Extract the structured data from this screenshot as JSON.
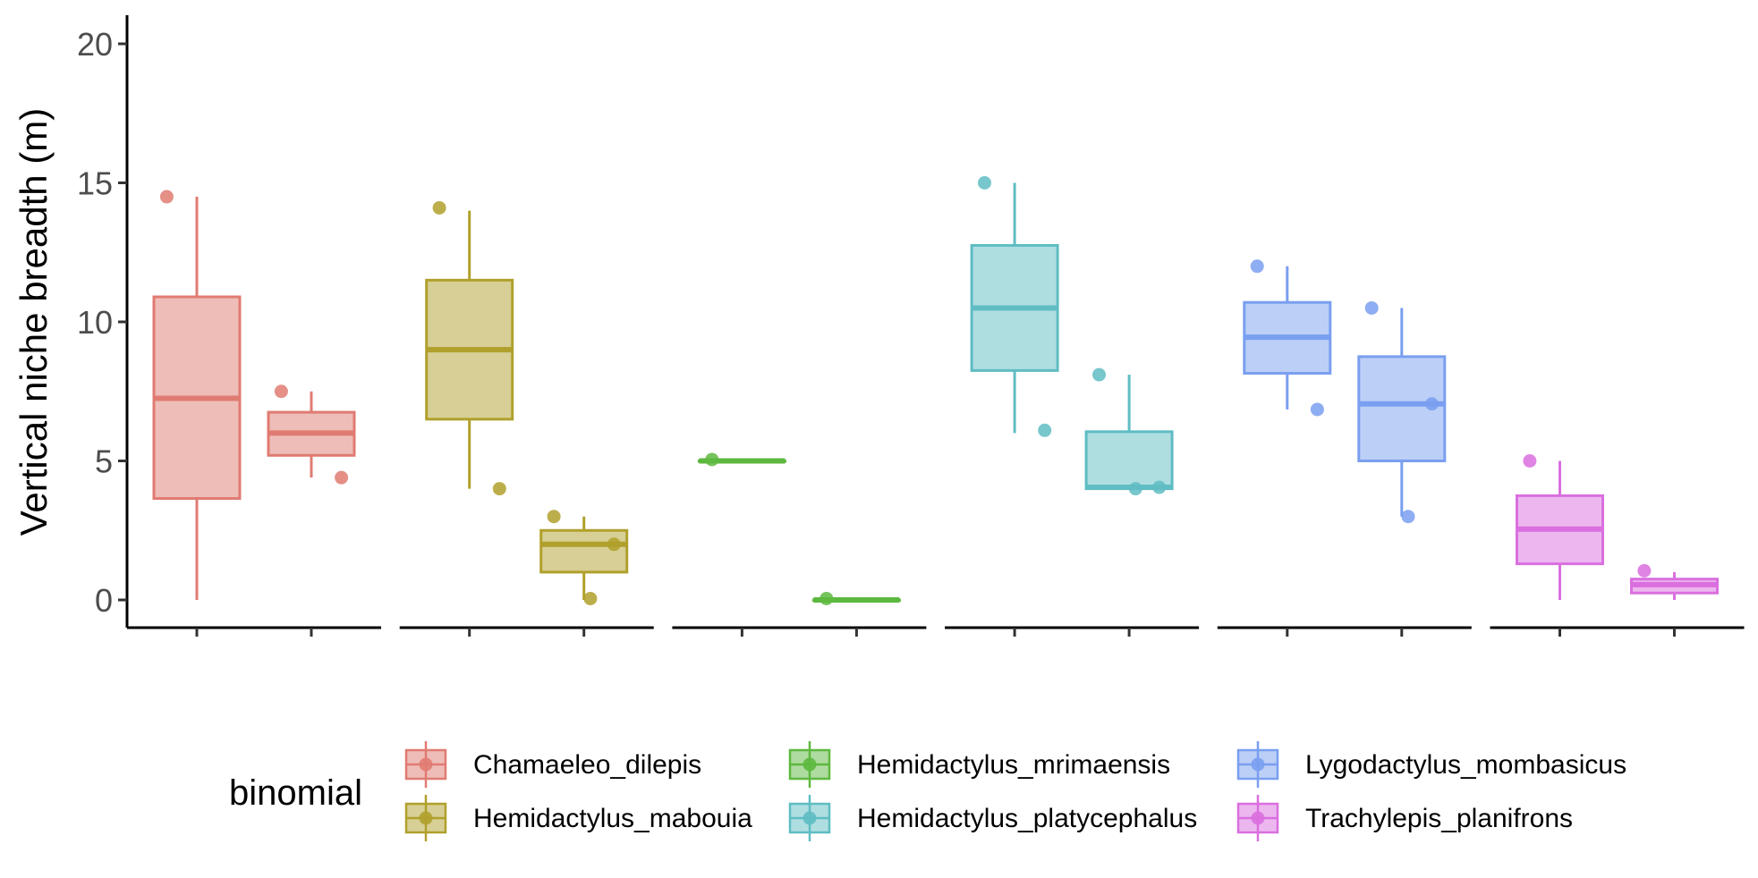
{
  "chart_data": {
    "type": "boxplot",
    "ylabel": "Vertical niche breadth (m)",
    "ylim": [
      -1,
      21
    ],
    "y_ticks": [
      "0",
      "5",
      "10",
      "15",
      "20"
    ],
    "y_tick_values": [
      0,
      5,
      10,
      15,
      20
    ],
    "grid": false,
    "facet_count": 6,
    "boxes_per_facet": 2,
    "legend": {
      "title": "binomial",
      "placement": "bottom",
      "entries": [
        "Chamaeleo_dilepis",
        "Hemidactylus_mabouia",
        "Hemidactylus_mrimaensis",
        "Hemidactylus_platycephalus",
        "Lygodactylus_mombasicus",
        "Trachylepis_planifrons"
      ]
    },
    "series": [
      {
        "name": "Chamaeleo_dilepis",
        "color": "#E07B72",
        "boxes": [
          {
            "min": 0,
            "q1": 3.65,
            "median": 7.25,
            "q3": 10.9,
            "max": 14.5,
            "points": [
              14.5
            ]
          },
          {
            "min": 4.4,
            "q1": 5.2,
            "median": 6.0,
            "q3": 6.75,
            "max": 7.5,
            "points": [
              7.5,
              4.4
            ]
          }
        ]
      },
      {
        "name": "Hemidactylus_mabouia",
        "color": "#B0A02C",
        "boxes": [
          {
            "min": 4.0,
            "q1": 6.5,
            "median": 9.0,
            "q3": 11.5,
            "max": 14.0,
            "points": [
              14.1,
              4.0
            ]
          },
          {
            "min": 0,
            "q1": 1.0,
            "median": 2.0,
            "q3": 2.5,
            "max": 3.0,
            "points": [
              3.0,
              2.0,
              0.05
            ]
          }
        ]
      },
      {
        "name": "Hemidactylus_mrimaensis",
        "color": "#5DB83F",
        "boxes": [
          {
            "min": 5.0,
            "q1": 5.0,
            "median": 5.0,
            "q3": 5.0,
            "max": 5.0,
            "points": [
              5.05
            ]
          },
          {
            "min": 0,
            "q1": 0,
            "median": 0,
            "q3": 0,
            "max": 0,
            "points": [
              0.05
            ]
          }
        ]
      },
      {
        "name": "Hemidactylus_platycephalus",
        "color": "#5FBDC3",
        "boxes": [
          {
            "min": 6.0,
            "q1": 8.25,
            "median": 10.5,
            "q3": 12.75,
            "max": 15.0,
            "points": [
              15.0,
              6.1
            ]
          },
          {
            "min": 4.0,
            "q1": 4.0,
            "median": 4.05,
            "q3": 6.05,
            "max": 8.1,
            "points": [
              8.1,
              4.05,
              4.0
            ]
          }
        ]
      },
      {
        "name": "Lygodactylus_mombasicus",
        "color": "#7A9FF0",
        "boxes": [
          {
            "min": 6.85,
            "q1": 8.15,
            "median": 9.45,
            "q3": 10.7,
            "max": 12.0,
            "points": [
              12.0,
              6.85
            ]
          },
          {
            "min": 3.0,
            "q1": 5.0,
            "median": 7.05,
            "q3": 8.75,
            "max": 10.5,
            "points": [
              10.5,
              7.05,
              3.0
            ]
          }
        ]
      },
      {
        "name": "Trachylepis_planifrons",
        "color": "#DA6FDF",
        "boxes": [
          {
            "min": 0,
            "q1": 1.3,
            "median": 2.55,
            "q3": 3.75,
            "max": 5.0,
            "points": [
              5.0
            ]
          },
          {
            "min": 0,
            "q1": 0.25,
            "median": 0.55,
            "q3": 0.75,
            "max": 1.0,
            "points": [
              1.05
            ]
          }
        ]
      }
    ]
  }
}
